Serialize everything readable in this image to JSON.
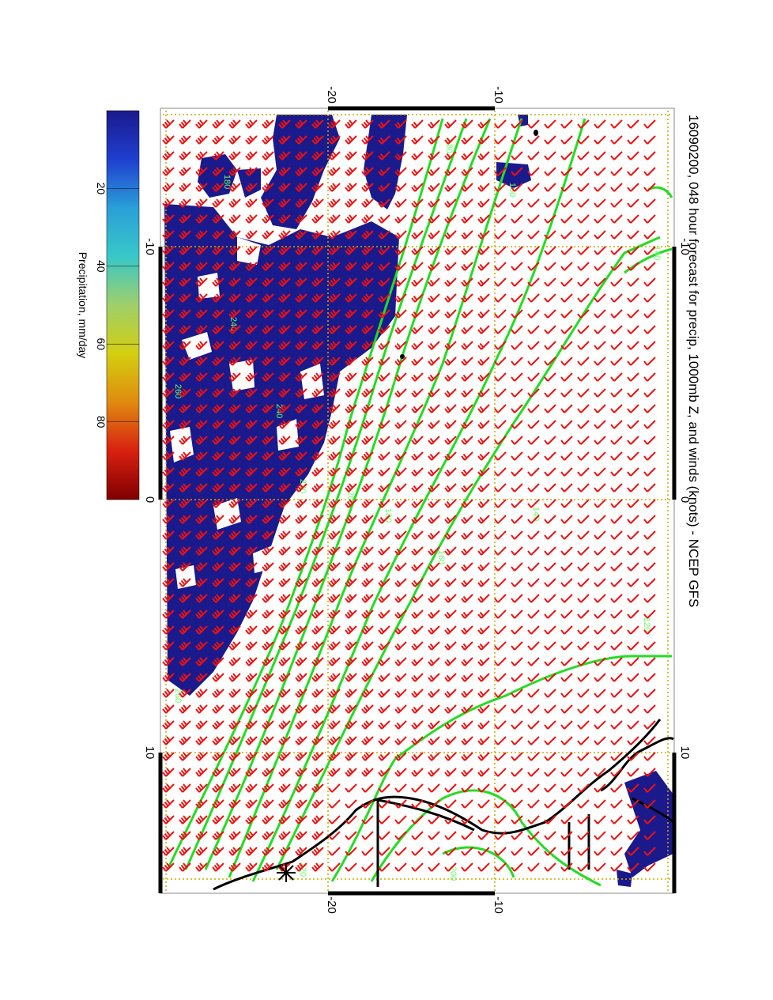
{
  "title": "16090200, 048 hour forecast for precip, 1000mb Z, and winds (knots) - NCEP GFS",
  "colorbar": {
    "label": "Precipitation, mm/day",
    "ticks": [
      "20",
      "40",
      "60",
      "80"
    ],
    "tick_values": [
      20,
      40,
      60,
      80
    ],
    "range": [
      0,
      100
    ],
    "colors": [
      "#1a1a8c",
      "#1f3fd0",
      "#2a9fd8",
      "#38c8c8",
      "#9fcf6a",
      "#d4cf10",
      "#e08a10",
      "#d82010",
      "#800000"
    ]
  },
  "axes": {
    "top_lat_labels": [
      "-10",
      "0",
      "10"
    ],
    "bottom_lat_labels": [
      "-10",
      "0",
      "10"
    ],
    "left_lon_labels": [
      "-20",
      "-10"
    ],
    "right_lon_labels": [
      "-20",
      "-10"
    ]
  },
  "contours": {
    "color": "#22dd22",
    "levels_printed": [
      "180",
      "160",
      "140",
      "180",
      "260",
      "240",
      "220",
      "200",
      "180",
      "160",
      "140",
      "120",
      "260",
      "240",
      "220",
      "200"
    ]
  },
  "colors": {
    "barbs": "#ee1111",
    "precip": "#1a1a8c",
    "grid": "#ccaa00",
    "coast": "#000000",
    "contour": "#22dd22"
  },
  "marker_icon": "asterisk-marker"
}
